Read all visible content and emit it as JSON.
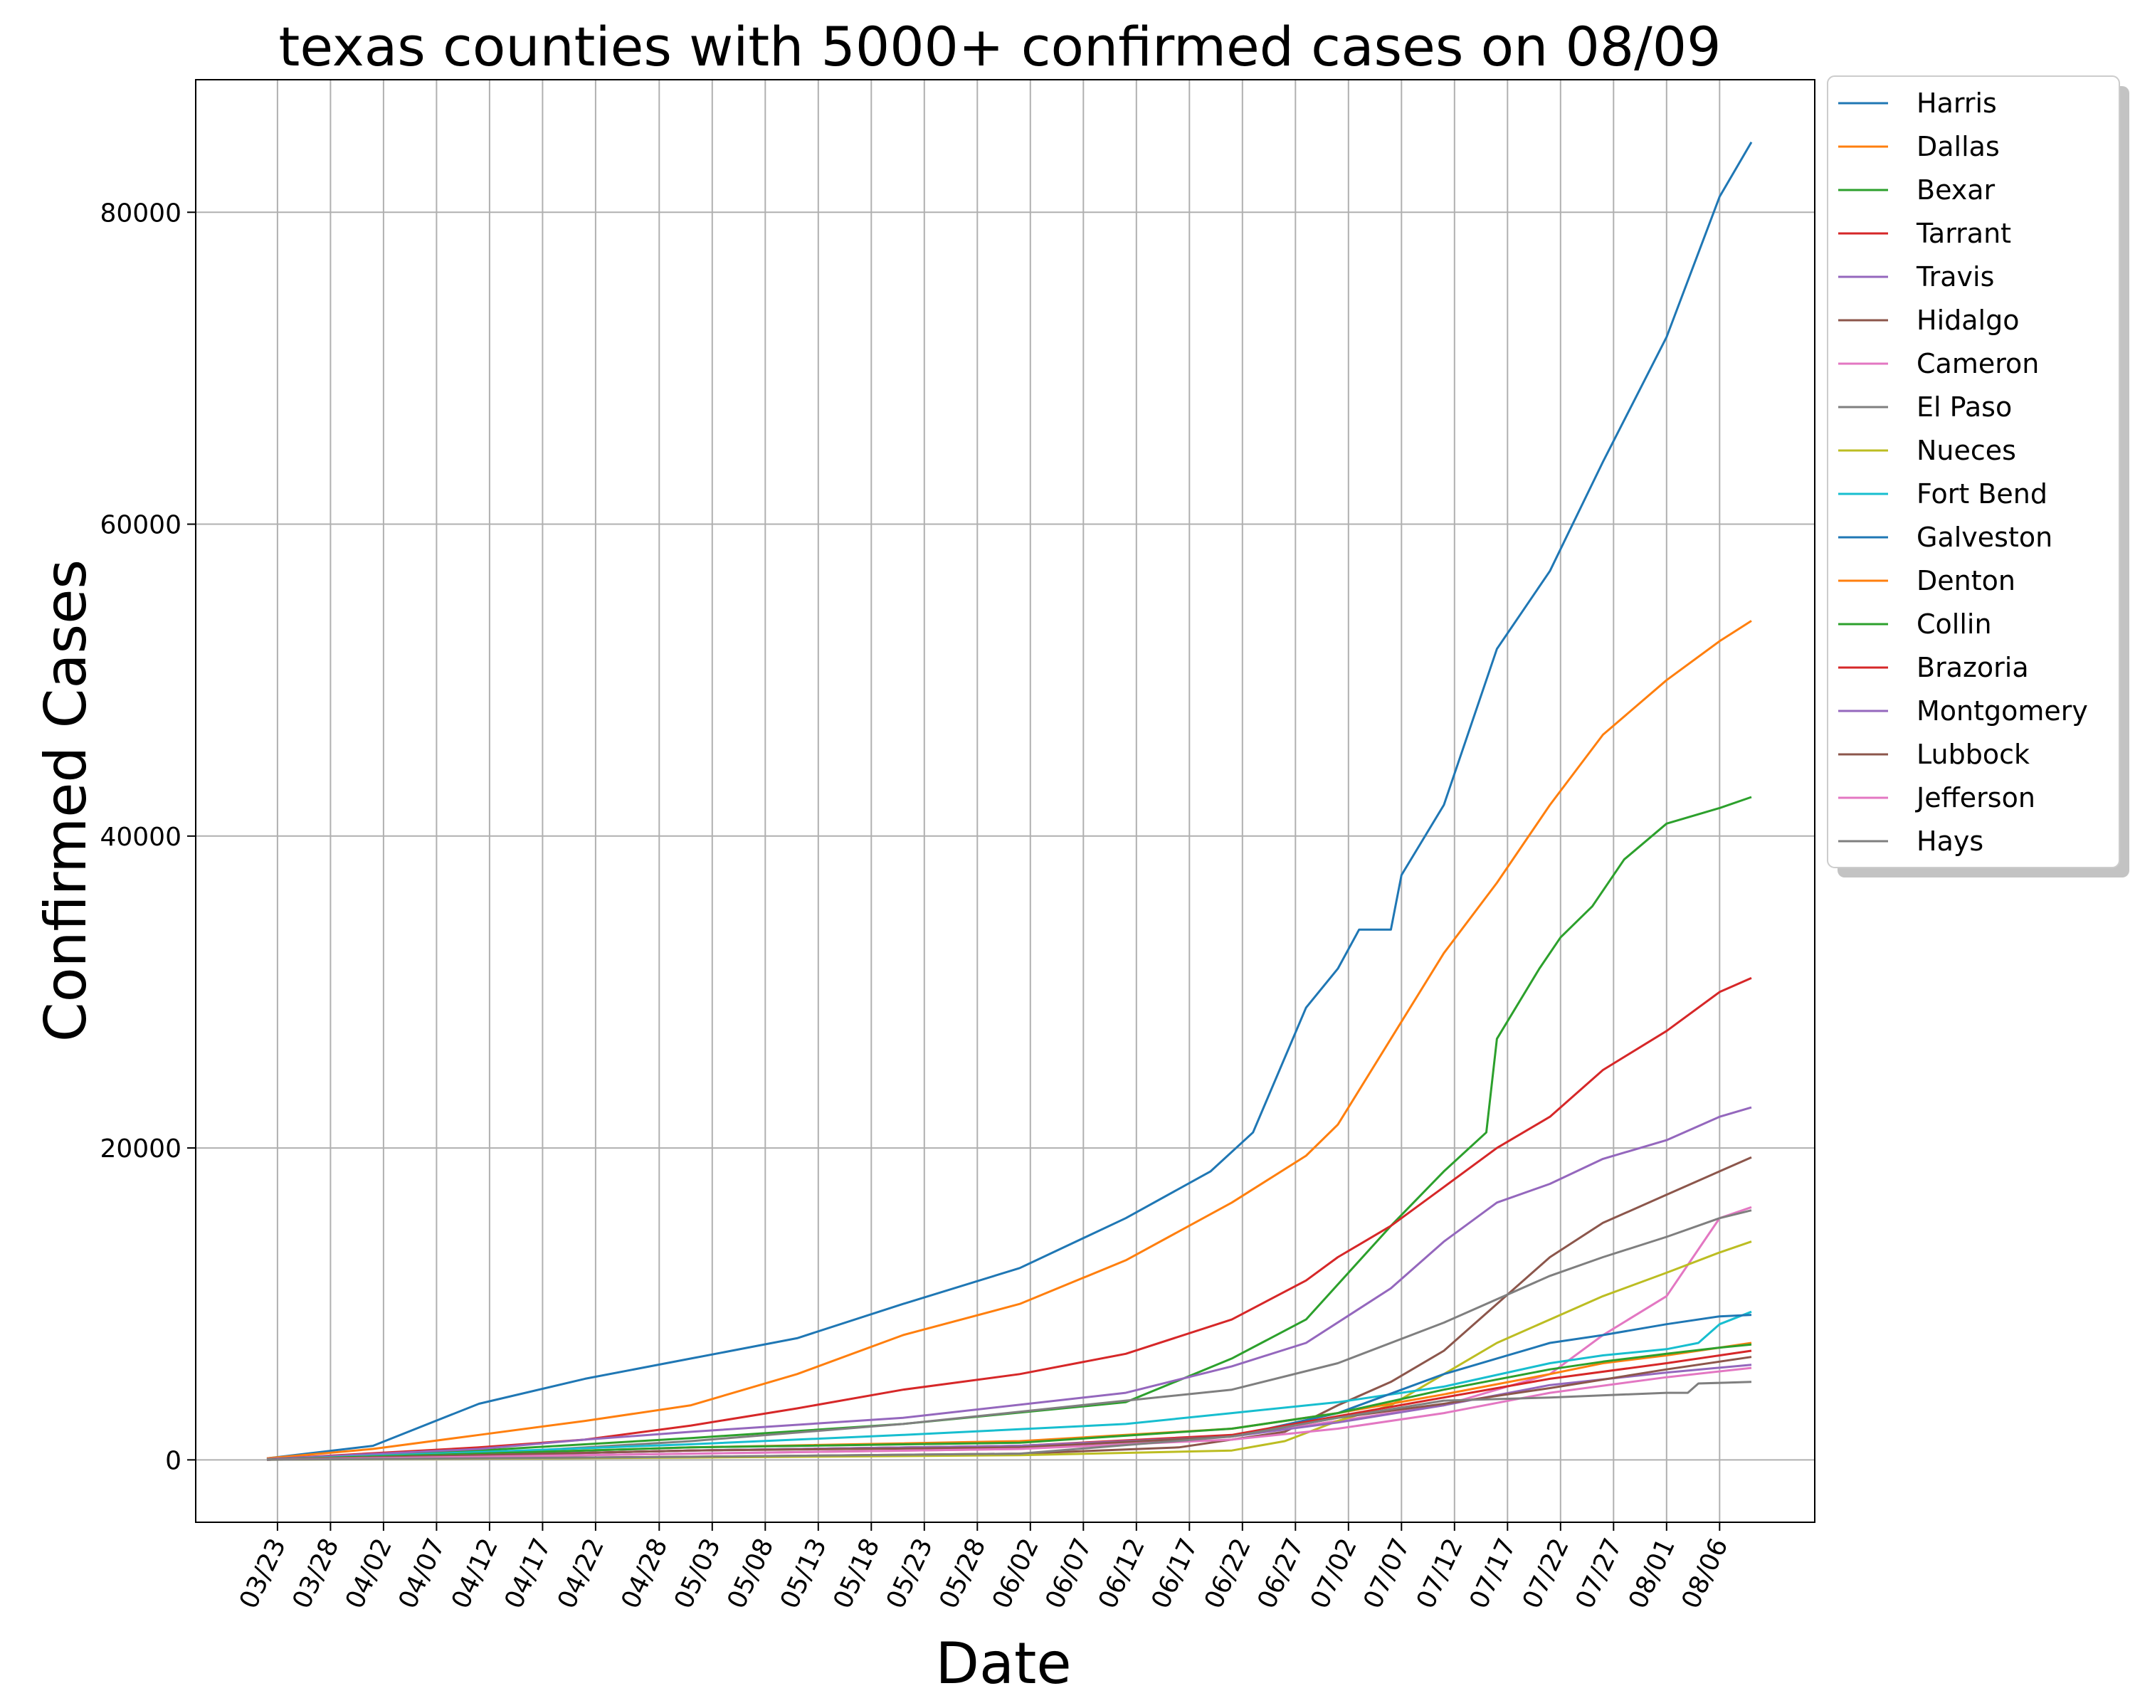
{
  "chart_data": {
    "type": "line",
    "title": "texas counties with 5000+ confirmed cases on 08/09",
    "xlabel": "Date",
    "ylabel": "Confirmed Cases",
    "ylim": [
      -4000,
      88500
    ],
    "yticks": [
      0,
      20000,
      40000,
      60000,
      80000
    ],
    "xticks": [
      "03/23",
      "03/28",
      "04/02",
      "04/07",
      "04/12",
      "04/17",
      "04/22",
      "04/28",
      "05/03",
      "05/08",
      "05/13",
      "05/18",
      "05/23",
      "05/28",
      "06/02",
      "06/07",
      "06/12",
      "06/17",
      "06/22",
      "06/27",
      "07/02",
      "07/07",
      "07/12",
      "07/17",
      "07/22",
      "07/27",
      "08/01",
      "08/06"
    ],
    "grid": true,
    "legend_position": "outside-top-right",
    "x_start": "03/22",
    "x_end": "08/09",
    "series": [
      {
        "name": "Harris",
        "color": "#1f77b4",
        "points": [
          [
            "03/22",
            100
          ],
          [
            "04/01",
            900
          ],
          [
            "04/11",
            3600
          ],
          [
            "04/21",
            5200
          ],
          [
            "05/01",
            6500
          ],
          [
            "05/11",
            7800
          ],
          [
            "05/21",
            10000
          ],
          [
            "06/01",
            12300
          ],
          [
            "06/11",
            15500
          ],
          [
            "06/19",
            18500
          ],
          [
            "06/23",
            21000
          ],
          [
            "06/28",
            29000
          ],
          [
            "07/01",
            31500
          ],
          [
            "07/03",
            34000
          ],
          [
            "07/06",
            34000
          ],
          [
            "07/07",
            37500
          ],
          [
            "07/11",
            42000
          ],
          [
            "07/16",
            52000
          ],
          [
            "07/21",
            57000
          ],
          [
            "07/26",
            64000
          ],
          [
            "08/01",
            72000
          ],
          [
            "08/06",
            81000
          ],
          [
            "08/09",
            84500
          ]
        ]
      },
      {
        "name": "Dallas",
        "color": "#ff7f0e",
        "points": [
          [
            "03/22",
            100
          ],
          [
            "04/01",
            700
          ],
          [
            "04/11",
            1600
          ],
          [
            "04/21",
            2500
          ],
          [
            "05/01",
            3500
          ],
          [
            "05/11",
            5500
          ],
          [
            "05/21",
            8000
          ],
          [
            "06/01",
            10000
          ],
          [
            "06/11",
            12800
          ],
          [
            "06/21",
            16500
          ],
          [
            "06/28",
            19500
          ],
          [
            "07/01",
            21500
          ],
          [
            "07/06",
            27000
          ],
          [
            "07/11",
            32500
          ],
          [
            "07/16",
            37000
          ],
          [
            "07/21",
            42000
          ],
          [
            "07/26",
            46500
          ],
          [
            "08/01",
            50000
          ],
          [
            "08/06",
            52500
          ],
          [
            "08/09",
            53800
          ]
        ]
      },
      {
        "name": "Bexar",
        "color": "#2ca02c",
        "points": [
          [
            "03/22",
            50
          ],
          [
            "04/11",
            600
          ],
          [
            "05/01",
            1400
          ],
          [
            "05/21",
            2300
          ],
          [
            "06/11",
            3700
          ],
          [
            "06/21",
            6500
          ],
          [
            "06/28",
            9000
          ],
          [
            "07/06",
            15000
          ],
          [
            "07/11",
            18500
          ],
          [
            "07/15",
            21000
          ],
          [
            "07/16",
            27000
          ],
          [
            "07/20",
            31500
          ],
          [
            "07/22",
            33500
          ],
          [
            "07/25",
            35500
          ],
          [
            "07/28",
            38500
          ],
          [
            "08/01",
            40800
          ],
          [
            "08/06",
            41800
          ],
          [
            "08/09",
            42500
          ]
        ]
      },
      {
        "name": "Tarrant",
        "color": "#d62728",
        "points": [
          [
            "03/22",
            50
          ],
          [
            "04/11",
            800
          ],
          [
            "04/21",
            1300
          ],
          [
            "05/01",
            2200
          ],
          [
            "05/11",
            3300
          ],
          [
            "05/21",
            4500
          ],
          [
            "06/01",
            5500
          ],
          [
            "06/11",
            6800
          ],
          [
            "06/21",
            9000
          ],
          [
            "06/28",
            11500
          ],
          [
            "07/01",
            13000
          ],
          [
            "07/06",
            15000
          ],
          [
            "07/11",
            17500
          ],
          [
            "07/16",
            20000
          ],
          [
            "07/21",
            22000
          ],
          [
            "07/26",
            25000
          ],
          [
            "08/01",
            27500
          ],
          [
            "08/06",
            30000
          ],
          [
            "08/09",
            30900
          ]
        ]
      },
      {
        "name": "Travis",
        "color": "#9467bd",
        "points": [
          [
            "03/22",
            50
          ],
          [
            "04/11",
            700
          ],
          [
            "04/21",
            1300
          ],
          [
            "05/01",
            1800
          ],
          [
            "05/21",
            2700
          ],
          [
            "06/11",
            4300
          ],
          [
            "06/21",
            6000
          ],
          [
            "06/28",
            7500
          ],
          [
            "07/06",
            11000
          ],
          [
            "07/11",
            14000
          ],
          [
            "07/16",
            16500
          ],
          [
            "07/21",
            17700
          ],
          [
            "07/26",
            19300
          ],
          [
            "08/01",
            20500
          ],
          [
            "08/06",
            22000
          ],
          [
            "08/09",
            22600
          ]
        ]
      },
      {
        "name": "Hidalgo",
        "color": "#8c564b",
        "points": [
          [
            "03/22",
            10
          ],
          [
            "05/01",
            200
          ],
          [
            "06/01",
            400
          ],
          [
            "06/16",
            800
          ],
          [
            "06/26",
            1800
          ],
          [
            "07/01",
            3500
          ],
          [
            "07/06",
            5000
          ],
          [
            "07/11",
            7000
          ],
          [
            "07/16",
            10000
          ],
          [
            "07/21",
            13000
          ],
          [
            "07/26",
            15200
          ],
          [
            "08/01",
            17000
          ],
          [
            "08/06",
            18500
          ],
          [
            "08/09",
            19400
          ]
        ]
      },
      {
        "name": "Cameron",
        "color": "#e377c2",
        "points": [
          [
            "03/22",
            10
          ],
          [
            "05/01",
            400
          ],
          [
            "06/01",
            700
          ],
          [
            "06/21",
            1500
          ],
          [
            "07/01",
            2500
          ],
          [
            "07/11",
            3500
          ],
          [
            "07/21",
            5500
          ],
          [
            "07/26",
            8000
          ],
          [
            "08/01",
            10500
          ],
          [
            "08/04",
            13500
          ],
          [
            "08/06",
            15500
          ],
          [
            "08/09",
            16200
          ]
        ]
      },
      {
        "name": "El Paso",
        "color": "#7f7f7f",
        "points": [
          [
            "03/22",
            10
          ],
          [
            "04/11",
            400
          ],
          [
            "05/01",
            1200
          ],
          [
            "05/21",
            2300
          ],
          [
            "06/11",
            3800
          ],
          [
            "06/21",
            4500
          ],
          [
            "07/01",
            6200
          ],
          [
            "07/11",
            8800
          ],
          [
            "07/21",
            11800
          ],
          [
            "07/26",
            13000
          ],
          [
            "08/01",
            14300
          ],
          [
            "08/06",
            15500
          ],
          [
            "08/09",
            16000
          ]
        ]
      },
      {
        "name": "Nueces",
        "color": "#bcbd22",
        "points": [
          [
            "03/22",
            10
          ],
          [
            "05/01",
            150
          ],
          [
            "06/01",
            300
          ],
          [
            "06/21",
            600
          ],
          [
            "06/26",
            1200
          ],
          [
            "07/01",
            2500
          ],
          [
            "07/06",
            3500
          ],
          [
            "07/11",
            5500
          ],
          [
            "07/16",
            7500
          ],
          [
            "07/21",
            9000
          ],
          [
            "07/26",
            10500
          ],
          [
            "08/01",
            12000
          ],
          [
            "08/06",
            13300
          ],
          [
            "08/09",
            14000
          ]
        ]
      },
      {
        "name": "Fort Bend",
        "color": "#17becf",
        "points": [
          [
            "03/22",
            20
          ],
          [
            "04/11",
            500
          ],
          [
            "05/01",
            1000
          ],
          [
            "05/21",
            1600
          ],
          [
            "06/11",
            2300
          ],
          [
            "06/21",
            3000
          ],
          [
            "07/01",
            3700
          ],
          [
            "07/11",
            4700
          ],
          [
            "07/21",
            6200
          ],
          [
            "07/26",
            6700
          ],
          [
            "08/01",
            7100
          ],
          [
            "08/04",
            7500
          ],
          [
            "08/06",
            8700
          ],
          [
            "08/09",
            9500
          ]
        ]
      },
      {
        "name": "Galveston",
        "color": "#1f77b4",
        "points": [
          [
            "03/22",
            20
          ],
          [
            "04/11",
            300
          ],
          [
            "05/01",
            600
          ],
          [
            "06/01",
            900
          ],
          [
            "06/21",
            1500
          ],
          [
            "07/01",
            3000
          ],
          [
            "07/11",
            5500
          ],
          [
            "07/21",
            7500
          ],
          [
            "07/26",
            8000
          ],
          [
            "08/01",
            8700
          ],
          [
            "08/06",
            9200
          ],
          [
            "08/09",
            9300
          ]
        ]
      },
      {
        "name": "Denton",
        "color": "#ff7f0e",
        "points": [
          [
            "03/22",
            20
          ],
          [
            "04/11",
            400
          ],
          [
            "05/01",
            800
          ],
          [
            "06/01",
            1200
          ],
          [
            "06/21",
            2000
          ],
          [
            "07/01",
            3000
          ],
          [
            "07/11",
            4200
          ],
          [
            "07/21",
            5500
          ],
          [
            "07/26",
            6200
          ],
          [
            "08/01",
            6700
          ],
          [
            "08/06",
            7200
          ],
          [
            "08/09",
            7500
          ]
        ]
      },
      {
        "name": "Collin",
        "color": "#2ca02c",
        "points": [
          [
            "03/22",
            20
          ],
          [
            "04/11",
            400
          ],
          [
            "05/01",
            800
          ],
          [
            "06/01",
            1100
          ],
          [
            "06/21",
            2000
          ],
          [
            "07/01",
            3000
          ],
          [
            "07/11",
            4500
          ],
          [
            "07/21",
            5800
          ],
          [
            "07/26",
            6300
          ],
          [
            "08/01",
            6800
          ],
          [
            "08/06",
            7200
          ],
          [
            "08/09",
            7400
          ]
        ]
      },
      {
        "name": "Brazoria",
        "color": "#d62728",
        "points": [
          [
            "03/22",
            10
          ],
          [
            "04/11",
            300
          ],
          [
            "05/01",
            600
          ],
          [
            "06/01",
            900
          ],
          [
            "06/21",
            1600
          ],
          [
            "07/01",
            2800
          ],
          [
            "07/11",
            4000
          ],
          [
            "07/21",
            5200
          ],
          [
            "08/01",
            6200
          ],
          [
            "08/09",
            7000
          ]
        ]
      },
      {
        "name": "Montgomery",
        "color": "#9467bd",
        "points": [
          [
            "03/22",
            10
          ],
          [
            "04/11",
            300
          ],
          [
            "05/01",
            600
          ],
          [
            "06/01",
            900
          ],
          [
            "06/21",
            1500
          ],
          [
            "07/01",
            2400
          ],
          [
            "07/11",
            3500
          ],
          [
            "07/21",
            4800
          ],
          [
            "08/01",
            5600
          ],
          [
            "08/09",
            6100
          ]
        ]
      },
      {
        "name": "Lubbock",
        "color": "#8c564b",
        "points": [
          [
            "03/22",
            10
          ],
          [
            "04/11",
            300
          ],
          [
            "05/01",
            600
          ],
          [
            "06/01",
            800
          ],
          [
            "06/21",
            1500
          ],
          [
            "07/01",
            2700
          ],
          [
            "07/11",
            3600
          ],
          [
            "07/21",
            4600
          ],
          [
            "08/01",
            5800
          ],
          [
            "08/09",
            6600
          ]
        ]
      },
      {
        "name": "Jefferson",
        "color": "#e377c2",
        "points": [
          [
            "03/22",
            10
          ],
          [
            "04/11",
            200
          ],
          [
            "05/01",
            400
          ],
          [
            "06/01",
            700
          ],
          [
            "06/21",
            1300
          ],
          [
            "07/01",
            2000
          ],
          [
            "07/11",
            3000
          ],
          [
            "07/21",
            4300
          ],
          [
            "08/01",
            5300
          ],
          [
            "08/09",
            5900
          ]
        ]
      },
      {
        "name": "Hays",
        "color": "#7f7f7f",
        "points": [
          [
            "03/22",
            5
          ],
          [
            "05/01",
            200
          ],
          [
            "06/01",
            400
          ],
          [
            "06/21",
            1500
          ],
          [
            "07/01",
            2700
          ],
          [
            "07/11",
            3800
          ],
          [
            "07/21",
            4000
          ],
          [
            "08/01",
            4300
          ],
          [
            "08/03",
            4300
          ],
          [
            "08/04",
            4900
          ],
          [
            "08/09",
            5000
          ]
        ]
      }
    ]
  }
}
